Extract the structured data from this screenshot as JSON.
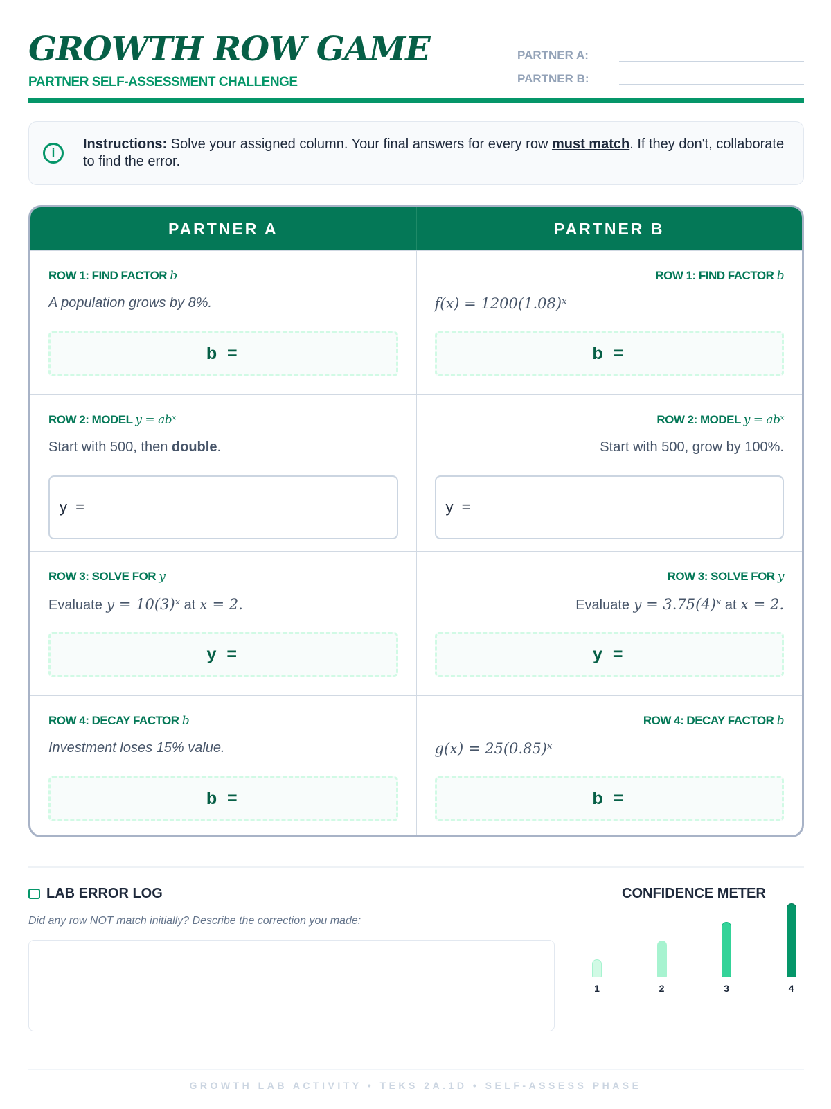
{
  "header": {
    "title": "GROWTH ROW GAME",
    "subtitle": "PARTNER SELF-ASSESSMENT CHALLENGE",
    "partner_a_label": "PARTNER A:",
    "partner_b_label": "PARTNER B:"
  },
  "instructions": {
    "icon": "info-icon",
    "lead": "Instructions:",
    "text1": " Solve your assigned column. Your final answers for every row ",
    "emph": "must match",
    "text2": ". If they don't, collaborate to find the error."
  },
  "table": {
    "col_a": "PARTNER A",
    "col_b": "PARTNER B",
    "rows": [
      {
        "label": "ROW 1: FIND FACTOR ",
        "var": "b",
        "a_prompt": "A population grows by 8%.",
        "b_prompt": "f(x) = 1200(1.08)ˣ",
        "answer": "b ="
      },
      {
        "label": "ROW 2: MODEL ",
        "var": "y = abˣ",
        "a_prompt_1": "Start with 500, then ",
        "a_prompt_bold": "double",
        "a_prompt_2": ".",
        "b_prompt": "Start with 500, grow by 100%.",
        "answer": "y ="
      },
      {
        "label": "ROW 3: SOLVE FOR ",
        "var": "y",
        "a_prompt_1": "Evaluate ",
        "a_math": "y = 10(3)ˣ",
        "a_prompt_2": " at ",
        "a_math2": "x = 2.",
        "b_math": "y = 3.75(4)ˣ",
        "answer": "y ="
      },
      {
        "label": "ROW 4: DECAY FACTOR ",
        "var": "b",
        "a_prompt": "Investment loses 15% value.",
        "b_prompt": "g(x) = 25(0.85)ˣ",
        "answer": "b ="
      }
    ]
  },
  "error_log": {
    "icon": "message-square-icon",
    "title": "LAB ERROR LOG",
    "prompt": "Did any row NOT match initially? Describe the correction you made:",
    "value": ""
  },
  "confidence": {
    "title": "CONFIDENCE METER",
    "levels": [
      {
        "label": "1",
        "color": "#d1fae5"
      },
      {
        "label": "2",
        "color": "#a7f3d0"
      },
      {
        "label": "3",
        "color": "#34d399"
      },
      {
        "label": "4",
        "color": "#059669"
      }
    ]
  },
  "footer": "GROWTH LAB ACTIVITY • TEKS 2A.1D • SELF-ASSESS PHASE"
}
